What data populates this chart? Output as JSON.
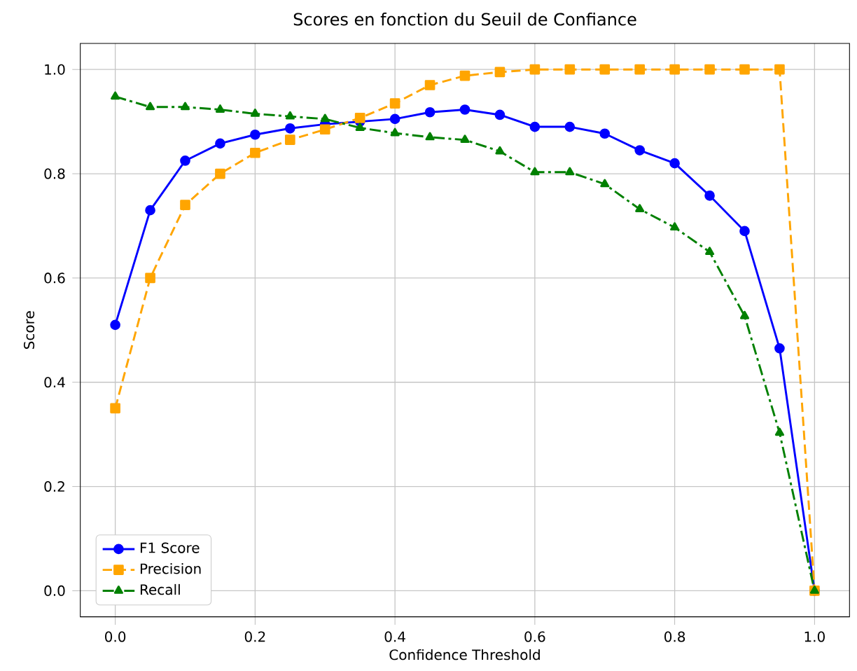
{
  "chart_data": {
    "type": "line",
    "title": "Scores en fonction du Seuil de Confiance",
    "xlabel": "Confidence Threshold",
    "ylabel": "Score",
    "x": [
      0,
      0.05,
      0.1,
      0.15,
      0.2,
      0.25,
      0.3,
      0.35,
      0.4,
      0.45,
      0.5,
      0.55,
      0.6,
      0.65,
      0.7,
      0.75,
      0.8,
      0.85,
      0.9,
      0.95,
      1.0
    ],
    "series": [
      {
        "name": "F1 Score",
        "color": "#0000ff",
        "marker": "circle",
        "line_style": "solid",
        "values": [
          0.51,
          0.73,
          0.825,
          0.858,
          0.875,
          0.887,
          0.895,
          0.9,
          0.905,
          0.918,
          0.923,
          0.913,
          0.89,
          0.89,
          0.877,
          0.845,
          0.82,
          0.758,
          0.69,
          0.465,
          0.0
        ]
      },
      {
        "name": "Precision",
        "color": "#ffa500",
        "marker": "square",
        "line_style": "dashed",
        "values": [
          0.35,
          0.6,
          0.74,
          0.8,
          0.84,
          0.865,
          0.885,
          0.907,
          0.935,
          0.97,
          0.988,
          0.995,
          1.0,
          1.0,
          1.0,
          1.0,
          1.0,
          1.0,
          1.0,
          1.0,
          0.0
        ]
      },
      {
        "name": "Recall",
        "color": "#008000",
        "marker": "triangle",
        "line_style": "dashdot",
        "values": [
          0.948,
          0.928,
          0.928,
          0.923,
          0.915,
          0.91,
          0.905,
          0.888,
          0.878,
          0.87,
          0.865,
          0.843,
          0.803,
          0.803,
          0.78,
          0.732,
          0.697,
          0.65,
          0.527,
          0.303,
          0.0
        ]
      }
    ],
    "xlim": [
      -0.05,
      1.05
    ],
    "ylim": [
      -0.05,
      1.05
    ],
    "xticks": [
      {
        "value": 0,
        "label": "0.0"
      },
      {
        "value": 0.2,
        "label": "0.2"
      },
      {
        "value": 0.4,
        "label": "0.4"
      },
      {
        "value": 0.6,
        "label": "0.6"
      },
      {
        "value": 0.8,
        "label": "0.8"
      },
      {
        "value": 1.0,
        "label": "1.0"
      }
    ],
    "yticks": [
      {
        "value": 0,
        "label": "0.0"
      },
      {
        "value": 0.2,
        "label": "0.2"
      },
      {
        "value": 0.4,
        "label": "0.4"
      },
      {
        "value": 0.6,
        "label": "0.6"
      },
      {
        "value": 0.8,
        "label": "0.8"
      },
      {
        "value": 1.0,
        "label": "1.0"
      }
    ],
    "grid": true,
    "legend": "bottom left"
  }
}
